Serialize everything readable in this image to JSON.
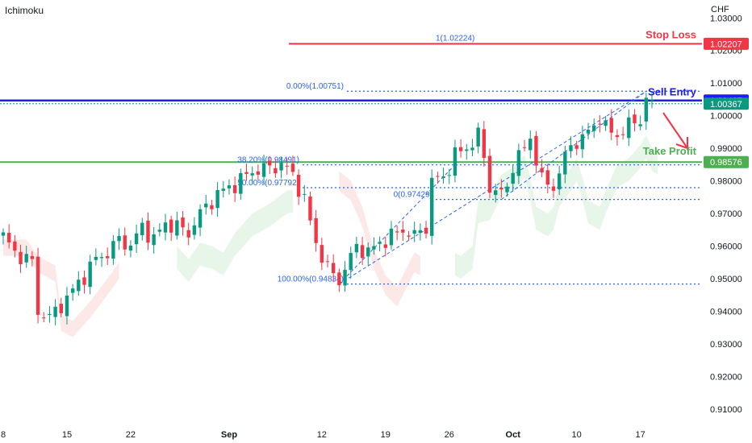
{
  "header": {
    "indicator": "Ichimoku",
    "currency": "CHF"
  },
  "colors": {
    "up": "#089981",
    "down": "#f23645",
    "stop": "#f23645",
    "entry": "#1e1ee6",
    "take": "#4caf50",
    "fib": "#2962ff",
    "kumo_bull": "#e8f5e9",
    "kumo_bear": "#fde8e8",
    "current": "#089981"
  },
  "chart_data": {
    "type": "candlestick",
    "ylim": [
      0.905,
      1.0355
    ],
    "y_ticks": [
      "1.03000",
      "1.02000",
      "1.01000",
      "1.00000",
      "0.99000",
      "0.98000",
      "0.97000",
      "0.96000",
      "0.95000",
      "0.94000",
      "0.93000",
      "0.92000",
      "0.91000"
    ],
    "x_ticks": [
      {
        "label": "8",
        "bar": 0
      },
      {
        "label": "15",
        "bar": 11
      },
      {
        "label": "22",
        "bar": 22
      },
      {
        "label": "Sep",
        "bar": 39
      },
      {
        "label": "12",
        "bar": 55
      },
      {
        "label": "19",
        "bar": 66
      },
      {
        "label": "26",
        "bar": 77
      },
      {
        "label": "Oct",
        "bar": 88
      },
      {
        "label": "10",
        "bar": 99
      },
      {
        "label": "17",
        "bar": 110
      }
    ],
    "bars": 113,
    "series": [
      {
        "name": "Close",
        "anchors": [
          [
            0,
            0.963
          ],
          [
            2,
            0.958
          ],
          [
            5,
            0.955
          ],
          [
            6,
            0.94
          ],
          [
            7,
            0.939
          ],
          [
            8,
            0.938
          ],
          [
            11,
            0.944
          ],
          [
            14,
            0.951
          ],
          [
            16,
            0.956
          ],
          [
            18,
            0.958
          ],
          [
            20,
            0.962
          ],
          [
            22,
            0.96
          ],
          [
            24,
            0.966
          ],
          [
            26,
            0.962
          ],
          [
            28,
            0.967
          ],
          [
            30,
            0.966
          ],
          [
            32,
            0.964
          ],
          [
            34,
            0.97
          ],
          [
            37,
            0.976
          ],
          [
            40,
            0.979
          ],
          [
            43,
            0.983
          ],
          [
            46,
            0.984
          ],
          [
            48,
            0.985
          ],
          [
            50,
            0.982
          ],
          [
            52,
            0.974
          ],
          [
            54,
            0.961
          ],
          [
            56,
            0.953
          ],
          [
            58,
            0.9495
          ],
          [
            59,
            0.953
          ],
          [
            61,
            0.96
          ],
          [
            63,
            0.958
          ],
          [
            65,
            0.961
          ],
          [
            67,
            0.963
          ],
          [
            69,
            0.965
          ],
          [
            71,
            0.963
          ],
          [
            73,
            0.966
          ],
          [
            74,
            0.98
          ],
          [
            76,
            0.981
          ],
          [
            78,
            0.988
          ],
          [
            80,
            0.99
          ],
          [
            82,
            0.994
          ],
          [
            83,
            0.987
          ],
          [
            84,
            0.978
          ],
          [
            86,
            0.976
          ],
          [
            87,
            0.978
          ],
          [
            88,
            0.985
          ],
          [
            90,
            0.99
          ],
          [
            91,
            0.993
          ],
          [
            92,
            0.987
          ],
          [
            93,
            0.98
          ],
          [
            95,
            0.978
          ],
          [
            96,
            0.983
          ],
          [
            98,
            0.991
          ],
          [
            100,
            0.993
          ],
          [
            102,
            0.997
          ],
          [
            103,
            1.0
          ],
          [
            104,
            0.996
          ],
          [
            106,
            0.994
          ],
          [
            108,
            0.997
          ],
          [
            110,
            0.999
          ],
          [
            111,
            1.005
          ],
          [
            112,
            1.0037
          ]
        ]
      }
    ],
    "levels": [
      {
        "name": "Stop Loss",
        "value": 1.02207,
        "label": "1.02207"
      },
      {
        "name": "Sell Entry",
        "value": 1.00467,
        "label": "1.00467"
      },
      {
        "name": "Current Price",
        "value": 1.00367,
        "label": "1.00367"
      },
      {
        "name": "Take Profit",
        "value": 0.98576,
        "label": "0.98576"
      }
    ],
    "fibonacci": [
      {
        "label": "1(1.02224)",
        "value": 1.02224
      },
      {
        "label": "0.00%(1.00751)",
        "value": 1.00751
      },
      {
        "label": "38.20%(0.98491)",
        "value": 0.98491
      },
      {
        "label": "50.00%(0.97792)",
        "value": 0.97792
      },
      {
        "label": "0(0.97429)",
        "value": 0.97429
      },
      {
        "label": "100.00%(0.94834)",
        "value": 0.94834
      }
    ]
  }
}
